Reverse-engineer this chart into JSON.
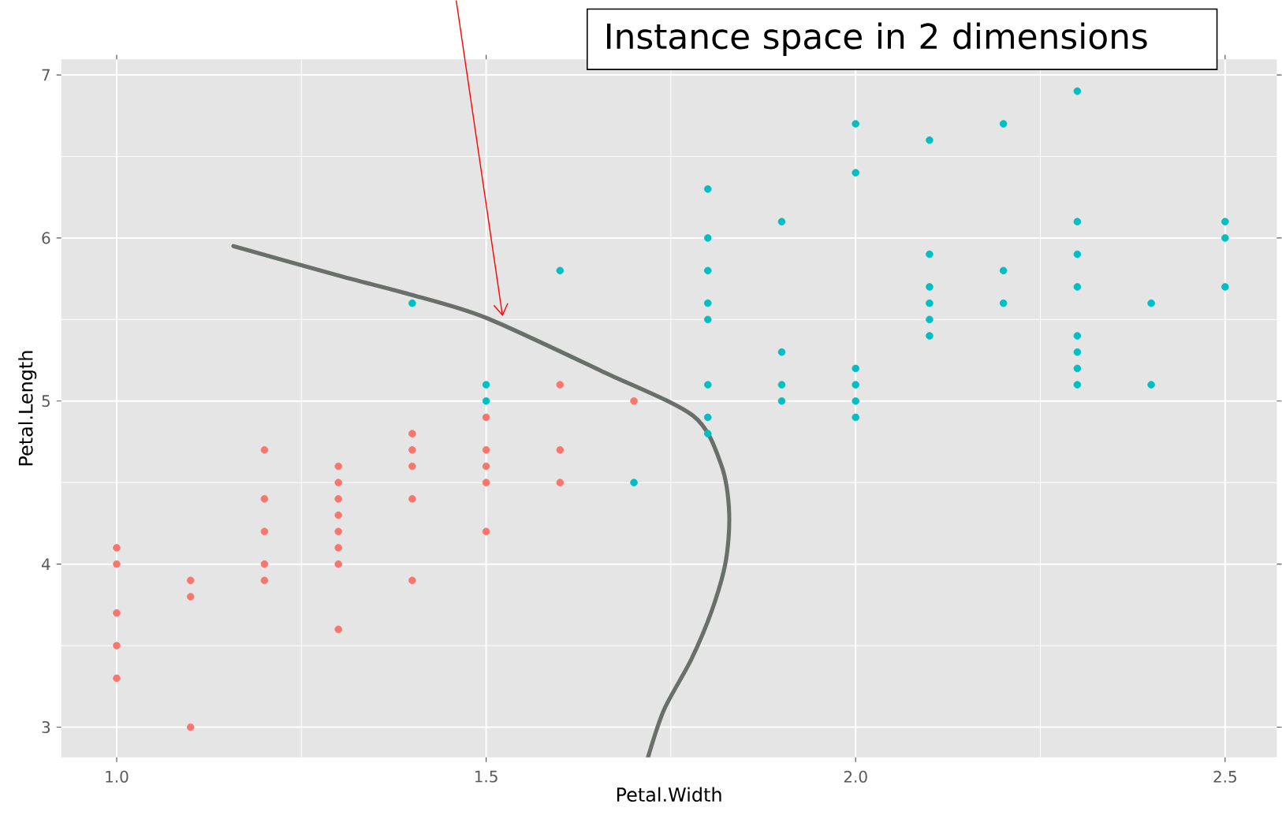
{
  "chart_data": {
    "type": "scatter",
    "title": "Instance space in 2 dimensions",
    "xlabel": "Petal.Width",
    "ylabel": "Petal.Length",
    "xlim": [
      0.925,
      2.57
    ],
    "ylim": [
      2.815,
      7.095
    ],
    "xticks": [
      {
        "value": 1,
        "label": "1.0"
      },
      {
        "value": 1.5,
        "label": "1.5"
      },
      {
        "value": 2,
        "label": "2.0"
      },
      {
        "value": 2.5,
        "label": "2.5"
      }
    ],
    "yticks": [
      3,
      4,
      5,
      6,
      7
    ],
    "grid": true,
    "marker": "circle",
    "series": [
      {
        "color": "#f8766d",
        "x": [
          1.0,
          1.0,
          1.0,
          1.0,
          1.0,
          1.1,
          1.1,
          1.1,
          1.2,
          1.2,
          1.2,
          1.2,
          1.2,
          1.3,
          1.3,
          1.3,
          1.3,
          1.3,
          1.3,
          1.3,
          1.3,
          1.4,
          1.4,
          1.4,
          1.4,
          1.4,
          1.5,
          1.5,
          1.5,
          1.5,
          1.5,
          1.6,
          1.6,
          1.6,
          1.7
        ],
        "values": [
          4.1,
          4.0,
          3.7,
          3.5,
          3.3,
          3.9,
          3.8,
          3.0,
          4.7,
          4.4,
          4.2,
          4.0,
          3.9,
          4.6,
          4.5,
          4.4,
          4.3,
          4.2,
          4.1,
          4.0,
          3.6,
          4.8,
          4.7,
          4.6,
          4.4,
          3.9,
          4.9,
          4.7,
          4.6,
          4.5,
          4.2,
          5.1,
          4.7,
          4.5,
          5.0
        ]
      },
      {
        "color": "#00bfc4",
        "x": [
          1.4,
          1.5,
          1.5,
          1.6,
          1.7,
          1.8,
          1.8,
          1.8,
          1.8,
          1.8,
          1.8,
          1.8,
          1.8,
          1.9,
          1.9,
          1.9,
          1.9,
          2.0,
          2.0,
          2.0,
          2.0,
          2.0,
          2.0,
          2.1,
          2.1,
          2.1,
          2.1,
          2.1,
          2.1,
          2.2,
          2.2,
          2.2,
          2.3,
          2.3,
          2.3,
          2.3,
          2.3,
          2.3,
          2.3,
          2.3,
          2.4,
          2.4,
          2.5,
          2.5,
          2.5
        ],
        "values": [
          5.6,
          5.1,
          5.0,
          5.8,
          4.5,
          6.3,
          6.0,
          5.8,
          5.6,
          5.5,
          5.1,
          4.9,
          4.8,
          6.1,
          5.3,
          5.1,
          5.0,
          6.7,
          6.4,
          5.2,
          5.1,
          5.0,
          4.9,
          6.6,
          5.9,
          5.7,
          5.6,
          5.5,
          5.4,
          6.7,
          5.8,
          5.6,
          6.9,
          6.1,
          5.9,
          5.7,
          5.4,
          5.3,
          5.2,
          5.1,
          5.6,
          5.1,
          6.1,
          6.0,
          5.7
        ]
      },
      {
        "type": "line",
        "marker": "none",
        "color": "#687069",
        "x": [
          1.158,
          1.3,
          1.4,
          1.5,
          1.658,
          1.78,
          1.818,
          1.829,
          1.824,
          1.805,
          1.777,
          1.741,
          1.719
        ],
        "values": [
          5.95,
          5.77,
          5.65,
          5.51,
          5.18,
          4.91,
          4.61,
          4.31,
          4.01,
          3.71,
          3.41,
          3.11,
          2.815
        ]
      }
    ]
  }
}
